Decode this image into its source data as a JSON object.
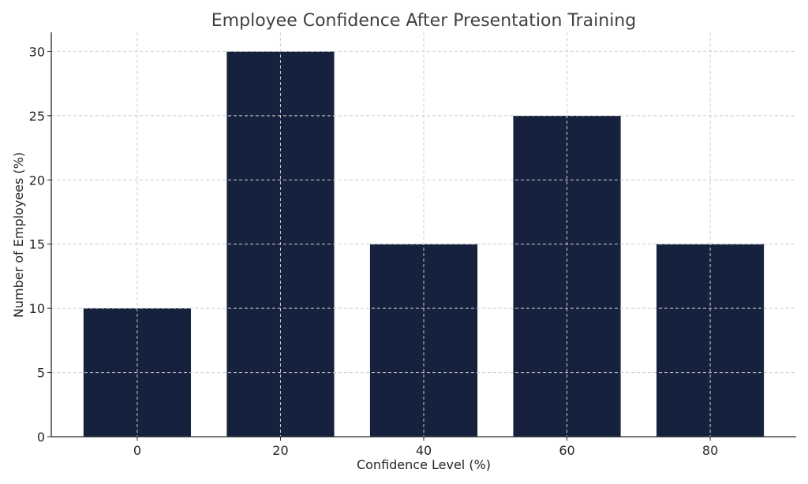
{
  "chart_data": {
    "type": "bar",
    "title": "Employee Confidence After Presentation Training",
    "xlabel": "Confidence Level (%)",
    "ylabel": "Number of Employees (%)",
    "categories": [
      "0",
      "20",
      "40",
      "60",
      "80"
    ],
    "x": [
      0,
      20,
      40,
      60,
      80
    ],
    "values": [
      10,
      30,
      15,
      25,
      15
    ],
    "bar_width": 15,
    "xlim": [
      -12,
      92
    ],
    "ylim": [
      0,
      31.5
    ],
    "yticks": [
      0,
      5,
      10,
      15,
      20,
      25,
      30
    ],
    "grid": true,
    "bar_color": "#16213d"
  }
}
